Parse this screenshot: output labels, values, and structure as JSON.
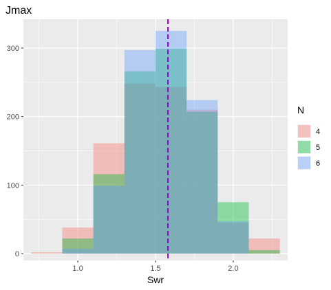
{
  "chart_data": {
    "type": "bar",
    "subtype": "overlapping-histogram",
    "title": "Jmax",
    "xlabel": "Swr",
    "ylabel": "",
    "xlim": [
      0.65,
      2.35
    ],
    "ylim": [
      -10,
      342
    ],
    "x_ticks": [
      1.0,
      1.5,
      2.0
    ],
    "x_tick_labels": [
      "1.0",
      "1.5",
      "2.0"
    ],
    "y_ticks": [
      0,
      100,
      200,
      300
    ],
    "y_tick_labels": [
      "0",
      "100",
      "200",
      "300"
    ],
    "bin_edges": [
      0.7,
      0.9,
      1.1,
      1.3,
      1.5,
      1.7,
      1.9,
      2.1,
      2.3
    ],
    "series": [
      {
        "name": "4",
        "color": "#F8766D",
        "values": [
          2,
          38,
          161,
          248,
          243,
          210,
          45,
          22
        ]
      },
      {
        "name": "5",
        "color": "#00BA38",
        "values": [
          0,
          22,
          116,
          266,
          299,
          207,
          75,
          5
        ]
      },
      {
        "name": "6",
        "color": "#619CFF",
        "values": [
          0,
          7,
          99,
          297,
          325,
          224,
          47,
          0
        ]
      }
    ],
    "vline": {
      "x": 1.58,
      "color": "#9400D3",
      "style": "dashed"
    },
    "legend": {
      "title": "N",
      "position": "right"
    },
    "grid": true,
    "panel_background": "#EBEBEB",
    "bar_opacity": 0.4
  }
}
